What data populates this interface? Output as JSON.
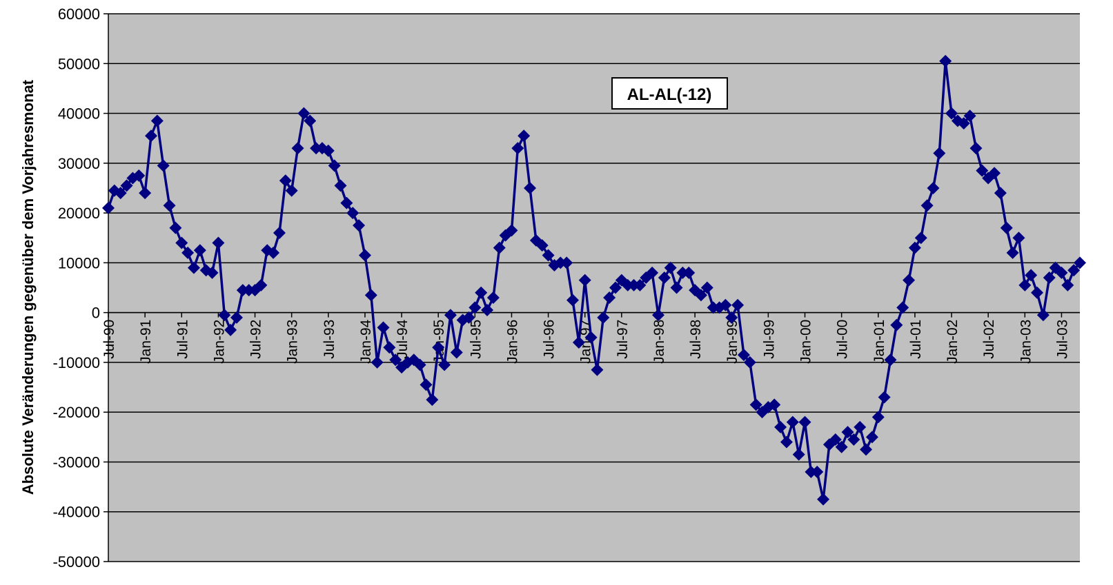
{
  "chart_data": {
    "type": "line",
    "title": "",
    "xlabel": "",
    "ylabel": "Absolute Veränderungen gegenüber dem Vorjahresmonat",
    "ylim": [
      -50000,
      60000
    ],
    "yticks": [
      60000,
      50000,
      40000,
      30000,
      20000,
      10000,
      0,
      -10000,
      -20000,
      -30000,
      -40000,
      -50000
    ],
    "xticks": [
      "Jul-90",
      "Jan-91",
      "Jul-91",
      "Jan-92",
      "Jul-92",
      "Jan-93",
      "Jul-93",
      "Jan-94",
      "Jul-94",
      "Jan-95",
      "Jul-95",
      "Jan-96",
      "Jul-96",
      "Jan-97",
      "Jul-97",
      "Jan-98",
      "Jul-98",
      "Jan-99",
      "Jul-99",
      "Jan-00",
      "Jul-00",
      "Jan-01",
      "Jul-01",
      "Jan-02",
      "Jul-02",
      "Jan-03",
      "Jul-03"
    ],
    "x_start": "Jul-90",
    "x_end": "Dec-03",
    "grid": true,
    "legend_position": "top-center",
    "colors": {
      "series": "#000080",
      "plot_background": "#c0c0c0",
      "grid": "#000000"
    },
    "series": [
      {
        "name": "AL-AL(-12)",
        "marker": "diamond",
        "values": [
          21000,
          24500,
          24000,
          25500,
          27000,
          27500,
          24000,
          35500,
          38500,
          29500,
          21500,
          17000,
          14000,
          12000,
          9000,
          12500,
          8500,
          8000,
          14000,
          -500,
          -3500,
          -1000,
          4500,
          4500,
          4500,
          5500,
          12500,
          12000,
          16000,
          26500,
          24500,
          33000,
          40000,
          38500,
          33000,
          33000,
          32500,
          29500,
          25500,
          22000,
          20000,
          17500,
          11500,
          3500,
          -10000,
          -3000,
          -7000,
          -9500,
          -11000,
          -10000,
          -9500,
          -10500,
          -14500,
          -17500,
          -7000,
          -10500,
          -500,
          -8000,
          -1500,
          -1000,
          1000,
          4000,
          500,
          3000,
          13000,
          15500,
          16500,
          33000,
          35500,
          25000,
          14500,
          13500,
          11500,
          9500,
          10000,
          10000,
          2500,
          -6000,
          6500,
          -5000,
          -11500,
          -1000,
          3000,
          5000,
          6500,
          5500,
          5500,
          5500,
          7000,
          8000,
          -500,
          7000,
          9000,
          5000,
          8000,
          8000,
          4500,
          3500,
          5000,
          1000,
          1000,
          1500,
          -1000,
          1500,
          -8500,
          -10000,
          -18500,
          -20000,
          -19000,
          -18500,
          -23000,
          -26000,
          -22000,
          -28500,
          -22000,
          -32000,
          -32000,
          -37500,
          -26500,
          -25500,
          -27000,
          -24000,
          -25500,
          -23000,
          -27500,
          -25000,
          -21000,
          -17000,
          -9500,
          -2500,
          1000,
          6500,
          13000,
          15000,
          21500,
          25000,
          32000,
          50500,
          40000,
          38500,
          38000,
          39500,
          33000,
          28500,
          27000,
          28000,
          24000,
          17000,
          12000,
          15000,
          5500,
          7500,
          4000,
          -500,
          7000,
          9000,
          8000,
          5500,
          8500,
          10000
        ]
      }
    ]
  }
}
